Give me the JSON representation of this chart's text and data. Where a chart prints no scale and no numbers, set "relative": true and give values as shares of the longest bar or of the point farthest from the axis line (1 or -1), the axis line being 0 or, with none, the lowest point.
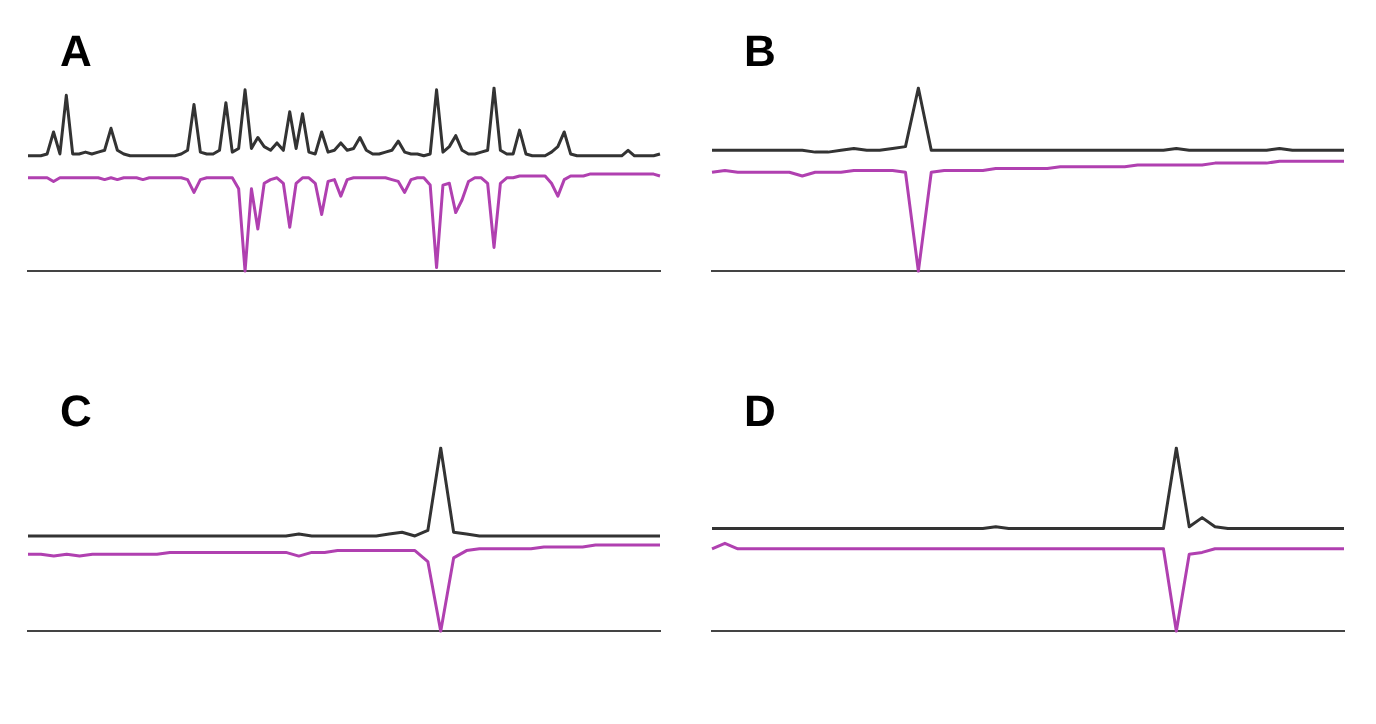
{
  "chart_data": [
    {
      "type": "line",
      "relative": true,
      "marker": "none",
      "annotations": [
        "A"
      ],
      "categories": [
        null,
        null,
        null,
        null,
        null,
        null,
        null,
        null,
        null,
        null,
        null,
        null,
        null,
        null,
        null,
        null,
        null,
        null,
        null,
        null,
        null,
        null,
        null,
        null,
        null,
        null,
        null,
        null,
        null,
        null,
        null,
        null,
        null,
        null,
        null,
        null,
        null,
        null,
        null,
        null,
        null,
        null,
        null,
        null,
        null,
        null,
        null,
        null,
        null,
        null,
        null,
        null,
        null,
        null,
        null,
        null,
        null,
        null,
        null,
        null,
        null,
        null,
        null,
        null,
        null,
        null,
        null,
        null,
        null,
        null,
        null,
        null,
        null,
        null,
        null,
        null,
        null,
        null,
        null,
        null,
        null,
        null,
        null,
        null,
        null,
        null,
        null,
        null,
        null,
        null,
        null,
        null,
        null,
        null,
        null,
        null,
        null,
        null,
        null,
        null
      ],
      "series": [
        {
          "color": "#333333",
          "values": [
            0.63,
            0.63,
            0.63,
            0.64,
            0.76,
            0.64,
            0.96,
            0.64,
            0.64,
            0.65,
            0.64,
            0.65,
            0.66,
            0.78,
            0.66,
            0.64,
            0.63,
            0.63,
            0.63,
            0.63,
            0.63,
            0.63,
            0.63,
            0.63,
            0.64,
            0.66,
            0.91,
            0.65,
            0.64,
            0.64,
            0.66,
            0.92,
            0.65,
            0.67,
            0.99,
            0.67,
            0.73,
            0.68,
            0.66,
            0.7,
            0.66,
            0.87,
            0.67,
            0.86,
            0.65,
            0.64,
            0.76,
            0.65,
            0.66,
            0.7,
            0.66,
            0.67,
            0.73,
            0.66,
            0.64,
            0.64,
            0.65,
            0.66,
            0.71,
            0.65,
            0.64,
            0.64,
            0.63,
            0.64,
            0.99,
            0.65,
            0.68,
            0.74,
            0.66,
            0.64,
            0.64,
            0.65,
            0.66,
            1,
            0.66,
            0.64,
            0.64,
            0.77,
            0.64,
            0.63,
            0.63,
            0.63,
            0.65,
            0.68,
            0.76,
            0.64,
            0.63,
            0.63,
            0.63,
            0.63,
            0.63,
            0.63,
            0.63,
            0.63,
            0.66,
            0.63,
            0.63,
            0.63,
            0.63,
            0.64
          ]
        },
        {
          "color": "#b040b0",
          "values": [
            0.51,
            0.51,
            0.51,
            0.51,
            0.49,
            0.51,
            0.51,
            0.51,
            0.51,
            0.51,
            0.51,
            0.51,
            0.5,
            0.51,
            0.5,
            0.51,
            0.51,
            0.51,
            0.5,
            0.51,
            0.51,
            0.51,
            0.51,
            0.51,
            0.51,
            0.5,
            0.43,
            0.5,
            0.51,
            0.51,
            0.51,
            0.51,
            0.51,
            0.45,
            0,
            0.45,
            0.23,
            0.48,
            0.5,
            0.51,
            0.48,
            0.24,
            0.48,
            0.51,
            0.51,
            0.48,
            0.31,
            0.49,
            0.5,
            0.41,
            0.5,
            0.51,
            0.51,
            0.51,
            0.51,
            0.51,
            0.51,
            0.5,
            0.49,
            0.43,
            0.5,
            0.51,
            0.51,
            0.47,
            0.02,
            0.47,
            0.48,
            0.32,
            0.39,
            0.49,
            0.51,
            0.51,
            0.48,
            0.13,
            0.48,
            0.51,
            0.51,
            0.52,
            0.52,
            0.52,
            0.52,
            0.52,
            0.48,
            0.41,
            0.5,
            0.52,
            0.52,
            0.52,
            0.53,
            0.53,
            0.53,
            0.53,
            0.53,
            0.53,
            0.53,
            0.53,
            0.53,
            0.53,
            0.53,
            0.52
          ]
        }
      ]
    },
    {
      "type": "line",
      "relative": true,
      "marker": "none",
      "annotations": [
        "B"
      ],
      "categories": [
        null,
        null,
        null,
        null,
        null,
        null,
        null,
        null,
        null,
        null,
        null,
        null,
        null,
        null,
        null,
        null,
        null,
        null,
        null,
        null,
        null,
        null,
        null,
        null,
        null,
        null,
        null,
        null,
        null,
        null,
        null,
        null,
        null,
        null,
        null,
        null,
        null,
        null,
        null,
        null,
        null,
        null,
        null,
        null,
        null,
        null,
        null,
        null,
        null,
        null
      ],
      "series": [
        {
          "color": "#333333",
          "values": [
            0.66,
            0.66,
            0.66,
            0.66,
            0.66,
            0.66,
            0.66,
            0.66,
            0.65,
            0.65,
            0.66,
            0.67,
            0.66,
            0.66,
            0.67,
            0.68,
            1,
            0.66,
            0.66,
            0.66,
            0.66,
            0.66,
            0.66,
            0.66,
            0.66,
            0.66,
            0.66,
            0.66,
            0.66,
            0.66,
            0.66,
            0.66,
            0.66,
            0.66,
            0.66,
            0.66,
            0.67,
            0.66,
            0.66,
            0.66,
            0.66,
            0.66,
            0.66,
            0.66,
            0.67,
            0.66,
            0.66,
            0.66,
            0.66,
            0.66
          ]
        },
        {
          "color": "#b040b0",
          "values": [
            0.54,
            0.55,
            0.54,
            0.54,
            0.54,
            0.54,
            0.54,
            0.52,
            0.54,
            0.54,
            0.54,
            0.55,
            0.55,
            0.55,
            0.55,
            0.54,
            0,
            0.54,
            0.55,
            0.55,
            0.55,
            0.55,
            0.56,
            0.56,
            0.56,
            0.56,
            0.56,
            0.57,
            0.57,
            0.57,
            0.57,
            0.57,
            0.57,
            0.58,
            0.58,
            0.58,
            0.58,
            0.58,
            0.58,
            0.59,
            0.59,
            0.59,
            0.59,
            0.59,
            0.6,
            0.6,
            0.6,
            0.6,
            0.6,
            0.6
          ]
        }
      ]
    },
    {
      "type": "line",
      "relative": true,
      "marker": "none",
      "annotations": [
        "C"
      ],
      "categories": [
        null,
        null,
        null,
        null,
        null,
        null,
        null,
        null,
        null,
        null,
        null,
        null,
        null,
        null,
        null,
        null,
        null,
        null,
        null,
        null,
        null,
        null,
        null,
        null,
        null,
        null,
        null,
        null,
        null,
        null,
        null,
        null,
        null,
        null,
        null,
        null,
        null,
        null,
        null,
        null,
        null,
        null,
        null,
        null,
        null,
        null,
        null,
        null,
        null,
        null
      ],
      "series": [
        {
          "color": "#333333",
          "values": [
            0.52,
            0.52,
            0.52,
            0.52,
            0.52,
            0.52,
            0.52,
            0.52,
            0.52,
            0.52,
            0.52,
            0.52,
            0.52,
            0.52,
            0.52,
            0.52,
            0.52,
            0.52,
            0.52,
            0.52,
            0.52,
            0.53,
            0.52,
            0.52,
            0.52,
            0.52,
            0.52,
            0.52,
            0.53,
            0.54,
            0.52,
            0.55,
            1,
            0.54,
            0.53,
            0.52,
            0.52,
            0.52,
            0.52,
            0.52,
            0.52,
            0.52,
            0.52,
            0.52,
            0.52,
            0.52,
            0.52,
            0.52,
            0.52,
            0.52
          ]
        },
        {
          "color": "#b040b0",
          "values": [
            0.42,
            0.42,
            0.41,
            0.42,
            0.41,
            0.42,
            0.42,
            0.42,
            0.42,
            0.42,
            0.42,
            0.43,
            0.43,
            0.43,
            0.43,
            0.43,
            0.43,
            0.43,
            0.43,
            0.43,
            0.43,
            0.41,
            0.43,
            0.43,
            0.44,
            0.44,
            0.44,
            0.44,
            0.44,
            0.44,
            0.44,
            0.38,
            0,
            0.4,
            0.44,
            0.45,
            0.45,
            0.45,
            0.45,
            0.45,
            0.46,
            0.46,
            0.46,
            0.46,
            0.47,
            0.47,
            0.47,
            0.47,
            0.47,
            0.47
          ]
        }
      ]
    },
    {
      "type": "line",
      "relative": true,
      "marker": "none",
      "annotations": [
        "D"
      ],
      "categories": [
        null,
        null,
        null,
        null,
        null,
        null,
        null,
        null,
        null,
        null,
        null,
        null,
        null,
        null,
        null,
        null,
        null,
        null,
        null,
        null,
        null,
        null,
        null,
        null,
        null,
        null,
        null,
        null,
        null,
        null,
        null,
        null,
        null,
        null,
        null,
        null,
        null,
        null,
        null,
        null,
        null,
        null,
        null,
        null,
        null,
        null,
        null,
        null,
        null,
        null
      ],
      "series": [
        {
          "color": "#333333",
          "values": [
            0.56,
            0.56,
            0.56,
            0.56,
            0.56,
            0.56,
            0.56,
            0.56,
            0.56,
            0.56,
            0.56,
            0.56,
            0.56,
            0.56,
            0.56,
            0.56,
            0.56,
            0.56,
            0.56,
            0.56,
            0.56,
            0.56,
            0.57,
            0.56,
            0.56,
            0.56,
            0.56,
            0.56,
            0.56,
            0.56,
            0.56,
            0.56,
            0.56,
            0.56,
            0.56,
            0.56,
            1,
            0.57,
            0.62,
            0.57,
            0.56,
            0.56,
            0.56,
            0.56,
            0.56,
            0.56,
            0.56,
            0.56,
            0.56,
            0.56
          ]
        },
        {
          "color": "#b040b0",
          "values": [
            0.45,
            0.48,
            0.45,
            0.45,
            0.45,
            0.45,
            0.45,
            0.45,
            0.45,
            0.45,
            0.45,
            0.45,
            0.45,
            0.45,
            0.45,
            0.45,
            0.45,
            0.45,
            0.45,
            0.45,
            0.45,
            0.45,
            0.45,
            0.45,
            0.45,
            0.45,
            0.45,
            0.45,
            0.45,
            0.45,
            0.45,
            0.45,
            0.45,
            0.45,
            0.45,
            0.45,
            0,
            0.42,
            0.43,
            0.45,
            0.45,
            0.45,
            0.45,
            0.45,
            0.45,
            0.45,
            0.45,
            0.45,
            0.45,
            0.45
          ]
        }
      ]
    }
  ]
}
